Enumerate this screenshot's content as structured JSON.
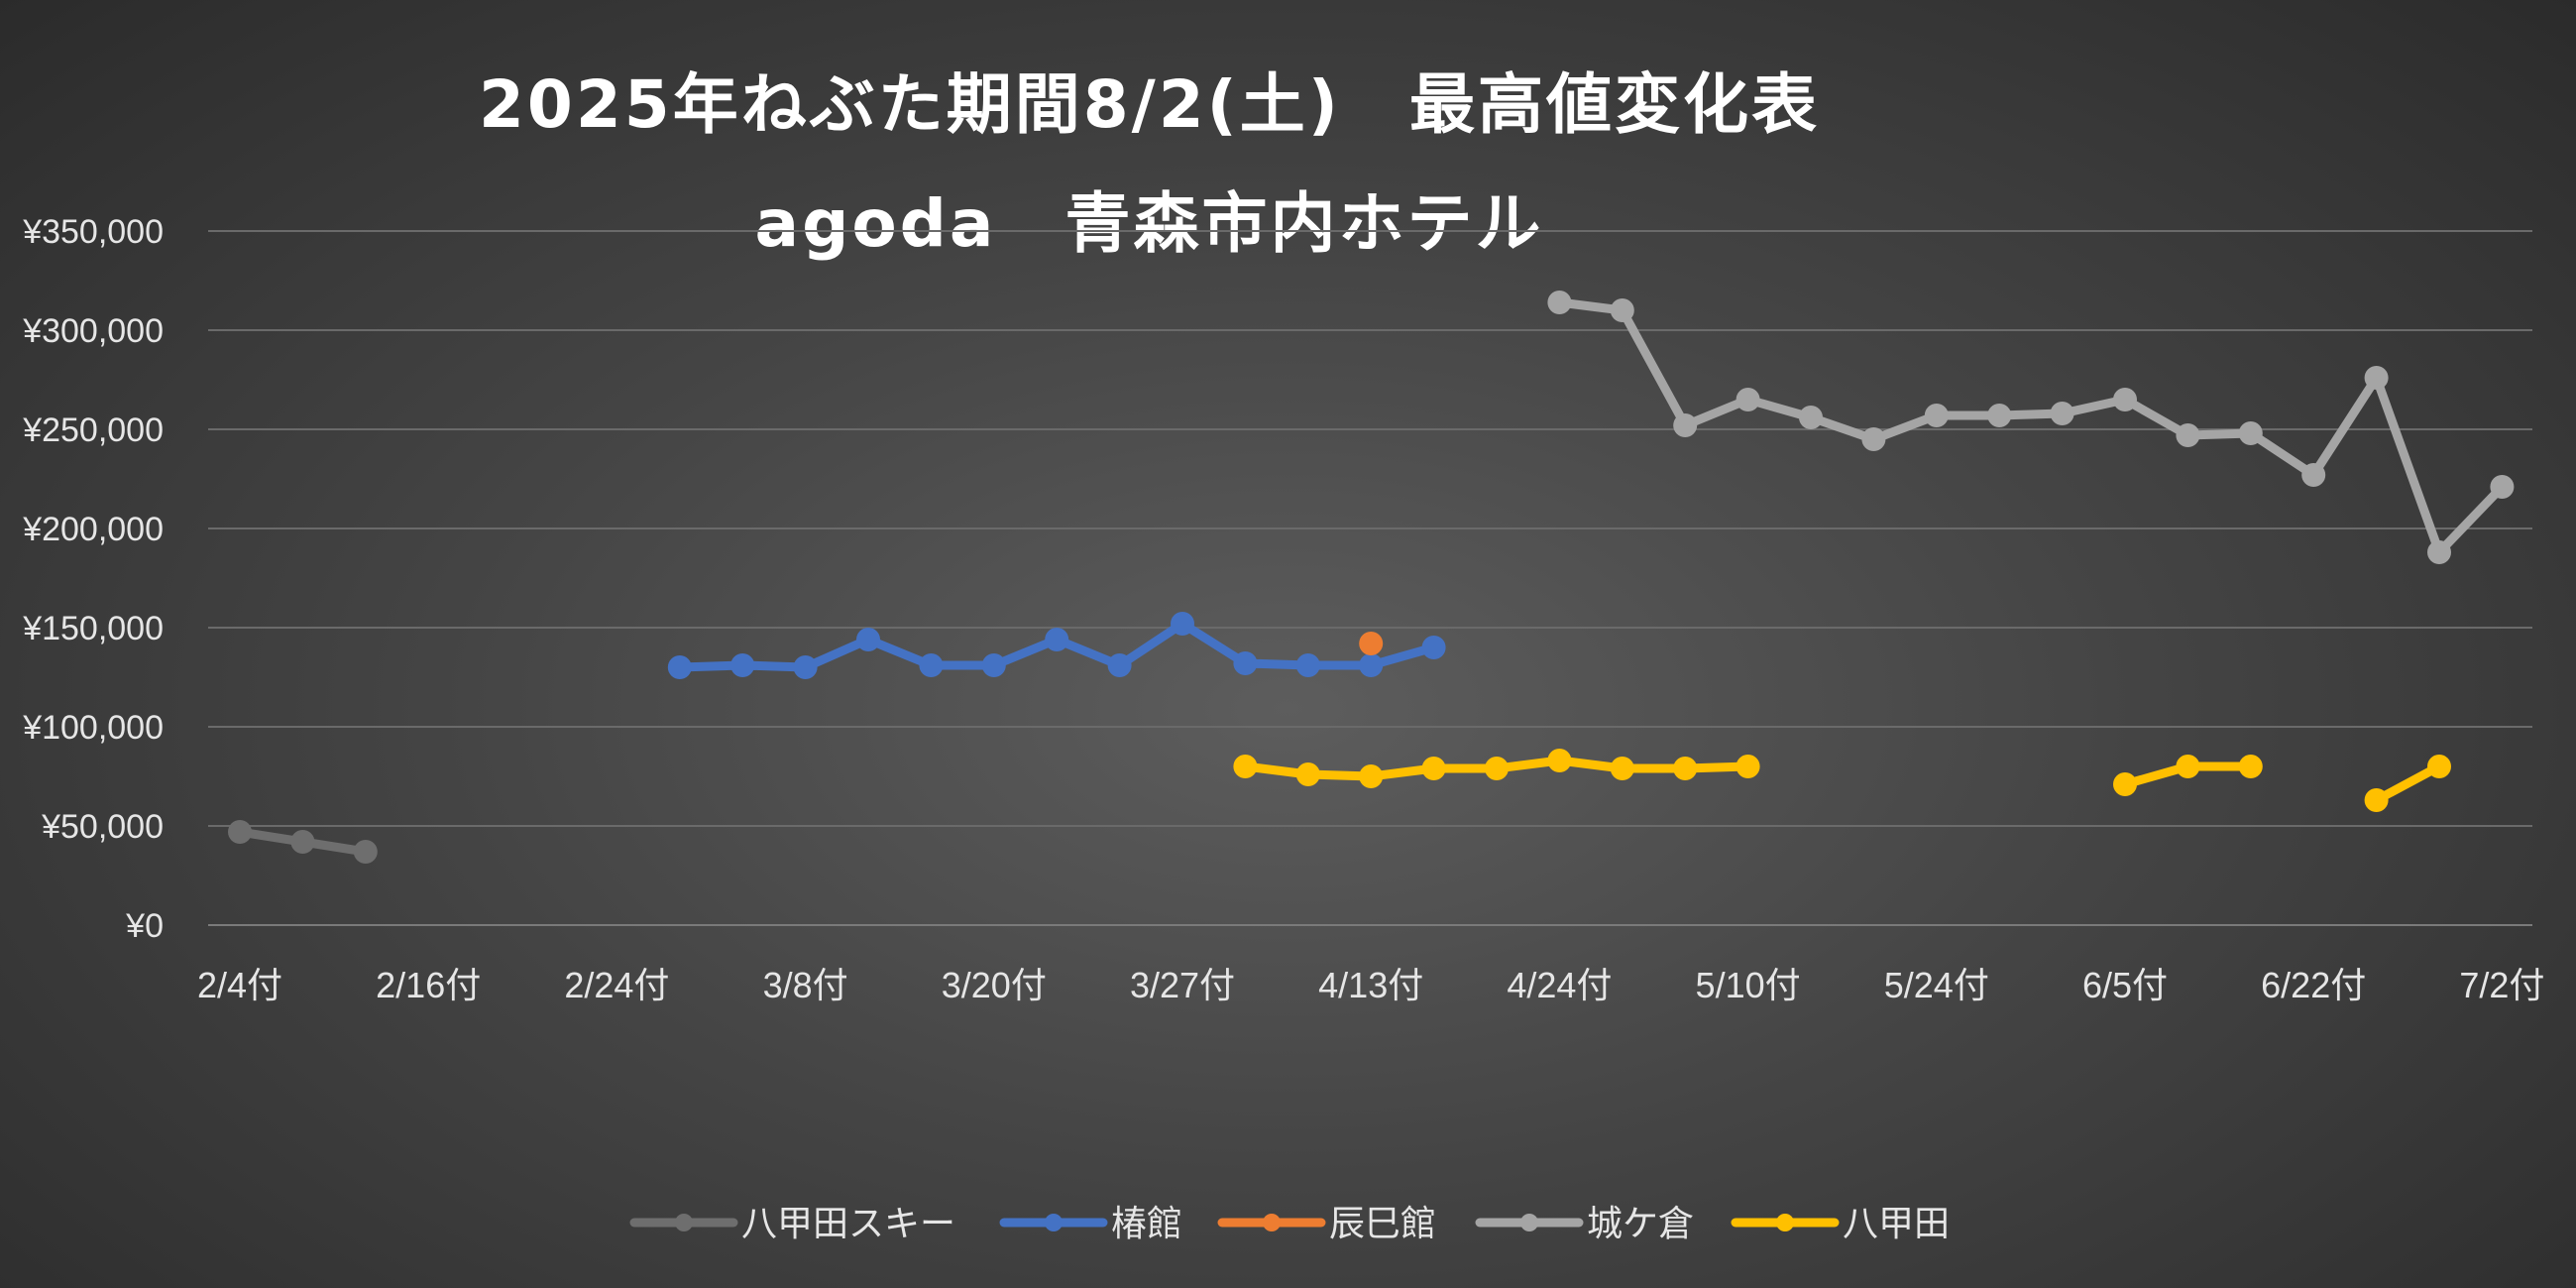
{
  "chart_data": {
    "type": "line",
    "title": "2025年ねぶた期間8/2(土)　最高値変化表",
    "subtitle": "agoda　青森市内ホテル",
    "xlabel": "",
    "ylabel": "",
    "ylim": [
      0,
      350000
    ],
    "yticks": [
      "¥0",
      "¥50,000",
      "¥100,000",
      "¥150,000",
      "¥200,000",
      "¥250,000",
      "¥300,000",
      "¥350,000"
    ],
    "x_tick_labels": [
      "2/4付",
      "2/16付",
      "2/24付",
      "3/8付",
      "3/20付",
      "3/27付",
      "4/13付",
      "4/24付",
      "5/10付",
      "5/24付",
      "6/5付",
      "6/22付",
      "7/2付"
    ],
    "x_tick_positions": [
      0,
      3,
      6,
      9,
      12,
      15,
      18,
      21,
      24,
      27,
      30,
      33,
      36
    ],
    "x_count": 37,
    "grid": true,
    "legend_position": "bottom",
    "series": [
      {
        "name": "八甲田スキー",
        "color": "#6e6e6e",
        "values": [
          47000,
          42000,
          37000,
          null,
          null,
          null,
          null,
          null,
          null,
          null,
          null,
          null,
          null,
          null,
          null,
          null,
          null,
          null,
          null,
          null,
          null,
          null,
          null,
          null,
          null,
          null,
          null,
          null,
          null,
          null,
          null,
          null,
          null,
          null,
          null,
          null,
          null
        ]
      },
      {
        "name": "椿館",
        "color": "#4472c4",
        "values": [
          null,
          null,
          null,
          null,
          null,
          null,
          null,
          130000,
          131000,
          130000,
          144000,
          131000,
          131000,
          144000,
          131000,
          152000,
          132000,
          131000,
          131000,
          140000,
          null,
          null,
          null,
          null,
          null,
          null,
          null,
          null,
          null,
          null,
          null,
          null,
          null,
          null,
          null,
          null,
          null
        ]
      },
      {
        "name": "辰巳館",
        "color": "#ed7d31",
        "values": [
          null,
          null,
          null,
          null,
          null,
          null,
          null,
          null,
          null,
          null,
          null,
          null,
          null,
          null,
          null,
          null,
          null,
          null,
          142000,
          null,
          null,
          null,
          null,
          null,
          null,
          null,
          null,
          null,
          null,
          null,
          null,
          null,
          null,
          null,
          null,
          null,
          null
        ]
      },
      {
        "name": "城ケ倉",
        "color": "#a5a5a5",
        "values": [
          null,
          null,
          null,
          null,
          null,
          null,
          null,
          null,
          null,
          null,
          null,
          null,
          null,
          null,
          null,
          null,
          null,
          null,
          null,
          null,
          null,
          314000,
          310000,
          252000,
          265000,
          256000,
          245000,
          257000,
          257000,
          258000,
          265000,
          247000,
          248000,
          227000,
          276000,
          188000,
          221000
        ]
      },
      {
        "name": "八甲田",
        "color": "#ffc000",
        "values": [
          null,
          null,
          null,
          null,
          null,
          null,
          null,
          null,
          null,
          null,
          null,
          null,
          null,
          null,
          null,
          null,
          80000,
          76000,
          75000,
          79000,
          79000,
          83000,
          79000,
          79000,
          80000,
          null,
          null,
          null,
          null,
          null,
          71000,
          80000,
          80000,
          null,
          63000,
          80000,
          null
        ]
      }
    ]
  }
}
